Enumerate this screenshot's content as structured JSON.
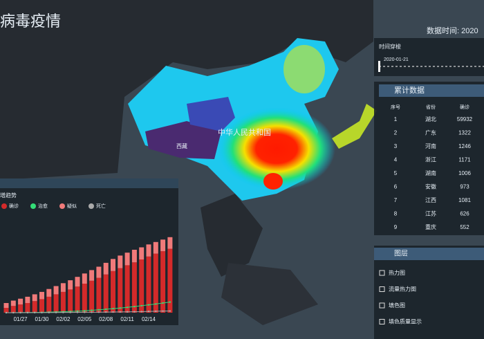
{
  "header": {
    "title": "病毒疫情",
    "data_time": "数据时间: 2020"
  },
  "timeline": {
    "title": "时间穿梭",
    "date": "2020-01-21"
  },
  "map": {
    "labels": [
      "中华人民共和国",
      "西藏"
    ]
  },
  "table": {
    "title": "累计数据",
    "columns": [
      "序号",
      "省份",
      "确诊"
    ],
    "rows": [
      [
        "1",
        "湖北",
        "59932"
      ],
      [
        "2",
        "广东",
        "1322"
      ],
      [
        "3",
        "河南",
        "1246"
      ],
      [
        "4",
        "浙江",
        "1171"
      ],
      [
        "5",
        "湖南",
        "1006"
      ],
      [
        "6",
        "安徽",
        "973"
      ],
      [
        "7",
        "江西",
        "1081"
      ],
      [
        "8",
        "江苏",
        "626"
      ],
      [
        "9",
        "重庆",
        "552"
      ]
    ]
  },
  "layers": {
    "title": "图层",
    "items": [
      "热力图",
      "流量热力图",
      "填色图",
      "填色质量显示"
    ]
  },
  "chart_data": {
    "type": "bar",
    "title": "增趋势",
    "categories": [
      null,
      null,
      "01/27",
      null,
      null,
      "01/30",
      null,
      null,
      "02/02",
      null,
      null,
      "02/05",
      null,
      null,
      "02/08",
      null,
      null,
      "02/11",
      null,
      null,
      "02/14",
      null,
      null,
      null
    ],
    "ylim": [
      0,
      80000
    ],
    "series": [
      {
        "name": "确诊",
        "color": "#d42a2a",
        "values": [
          5000,
          7000,
          8500,
          10000,
          12000,
          14000,
          16500,
          19000,
          21500,
          24000,
          27000,
          30000,
          33000,
          36000,
          39500,
          43000,
          46000,
          49000,
          52000,
          55000,
          58000,
          61000,
          63500,
          66000
        ]
      },
      {
        "name": "治愈",
        "color": "#33dd77",
        "values": [
          0,
          50,
          100,
          200,
          300,
          400,
          600,
          800,
          1000,
          1300,
          1600,
          2000,
          2500,
          3000,
          3600,
          4200,
          4800,
          5500,
          6300,
          7200,
          8100,
          9000,
          10000,
          11000
        ]
      },
      {
        "name": "疑似",
        "color": "#f07a7a",
        "values": [
          5000,
          5500,
          6000,
          6500,
          7000,
          7500,
          8000,
          8500,
          9000,
          9500,
          10000,
          10500,
          11000,
          11500,
          12000,
          12500,
          13000,
          13000,
          13000,
          12500,
          12500,
          12000,
          12000,
          12000
        ]
      },
      {
        "name": "死亡",
        "color": "#aaaaaa",
        "values": [
          20,
          40,
          60,
          80,
          100,
          130,
          170,
          210,
          260,
          310,
          360,
          420,
          490,
          560,
          640,
          720,
          810,
          900,
          1010,
          1110,
          1380,
          1520,
          1660,
          1770
        ]
      }
    ]
  }
}
